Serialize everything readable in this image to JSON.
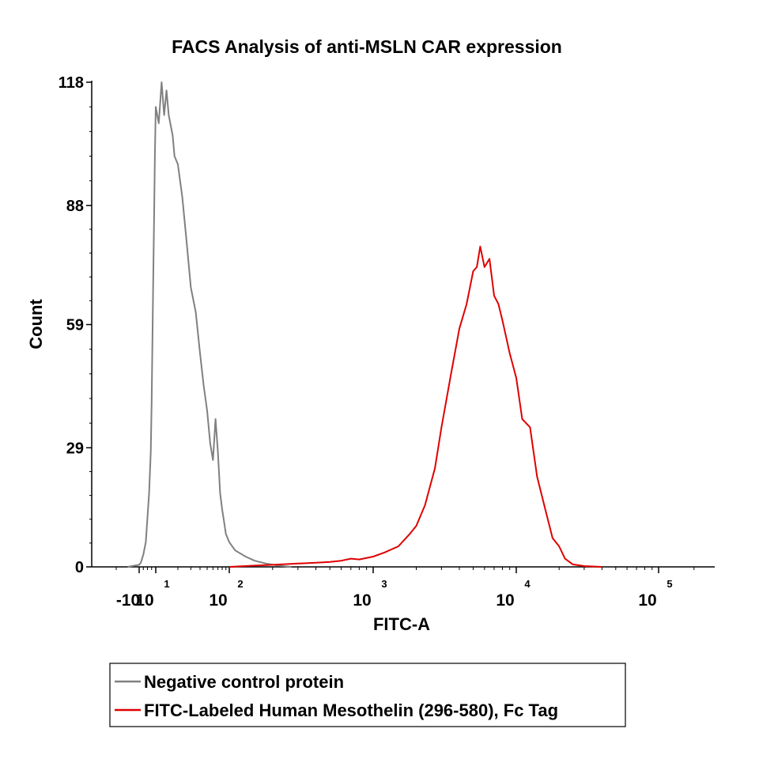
{
  "chart_data": {
    "type": "line",
    "title": "FACS Analysis of anti-MSLN CAR expression",
    "xlabel": "FITC-A",
    "ylabel": "Count",
    "x_scale": "biexponential",
    "ylim": [
      0,
      118
    ],
    "y_ticks": [
      {
        "value": 0,
        "label": "0"
      },
      {
        "value": 29,
        "label": "29"
      },
      {
        "value": 59,
        "label": "59"
      },
      {
        "value": 88,
        "label": "88"
      },
      {
        "value": 118,
        "label": "118"
      }
    ],
    "x_ticks": [
      {
        "value": -10,
        "base": "-10",
        "exp": ""
      },
      {
        "value": 10,
        "base": "10",
        "exp": "1"
      },
      {
        "value": 100,
        "base": "10",
        "exp": "2"
      },
      {
        "value": 1000,
        "base": "10",
        "exp": "3"
      },
      {
        "value": 10000,
        "base": "10",
        "exp": "4"
      },
      {
        "value": 100000,
        "base": "10",
        "exp": "5"
      }
    ],
    "legend": {
      "position": "bottom",
      "border": true
    },
    "series": [
      {
        "name": "Negative control protein",
        "color": "#808080",
        "x": [
          -15,
          -10,
          -8,
          -5,
          -2,
          0,
          2,
          4,
          5,
          6,
          7,
          8,
          9,
          10,
          11,
          12,
          13,
          14,
          15,
          17,
          18,
          20,
          23,
          26,
          30,
          35,
          40,
          45,
          50,
          55,
          60,
          65,
          70,
          75,
          80,
          85,
          90,
          100,
          110,
          130,
          150,
          180,
          220,
          270
        ],
        "values": [
          0,
          0.5,
          1,
          3,
          6,
          12,
          18,
          28,
          40,
          55,
          70,
          85,
          100,
          112,
          108,
          118,
          110,
          116,
          110,
          105,
          100,
          98,
          90,
          80,
          68,
          62,
          52,
          44,
          38,
          30,
          26,
          36,
          28,
          18,
          14,
          11,
          8,
          6,
          4,
          2.5,
          1.5,
          0.8,
          0.3,
          0
        ]
      },
      {
        "name": "FITC-Labeled Human Mesothelin (296-580), Fc Tag",
        "color": "#e00000",
        "x": [
          100,
          150,
          200,
          300,
          400,
          500,
          600,
          700,
          800,
          1000,
          1200,
          1500,
          1800,
          2000,
          2300,
          2700,
          3000,
          3500,
          4000,
          4500,
          5000,
          5300,
          5600,
          6000,
          6500,
          7000,
          7500,
          8000,
          9000,
          10000,
          11000,
          12500,
          14000,
          16000,
          18000,
          20000,
          22000,
          25000,
          30000,
          40000
        ],
        "values": [
          0,
          0.3,
          0.5,
          0.8,
          1,
          1.2,
          1.5,
          2,
          1.8,
          2.5,
          3.5,
          5,
          8,
          10,
          15,
          24,
          34,
          47,
          58,
          64,
          72,
          73,
          78,
          73,
          75,
          66,
          64,
          60,
          52,
          46,
          36,
          34,
          22,
          14,
          7,
          5,
          2,
          0.6,
          0.2,
          0
        ]
      }
    ]
  }
}
